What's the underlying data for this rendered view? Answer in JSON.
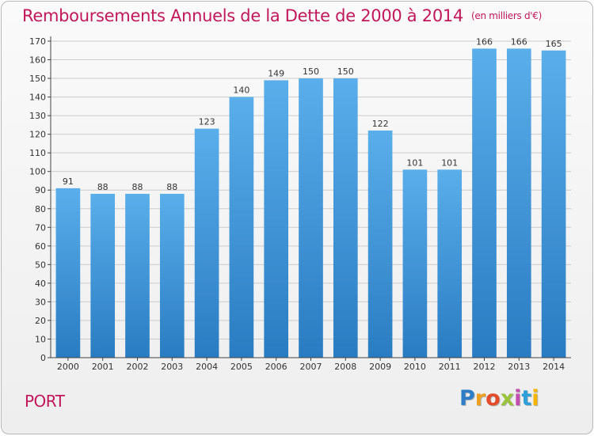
{
  "title": "Remboursements Annuels de la Dette de 2000 à 2014",
  "unit_label": "(en milliers d'€)",
  "commune": "PORT",
  "logo": {
    "letters": [
      "P",
      "r",
      "o",
      "x",
      "i",
      "t",
      "i"
    ]
  },
  "colors": {
    "title": "#c2185b",
    "bar_top": "#5aaeea",
    "bar_bottom": "#2a7cc2",
    "axis": "#444444",
    "grid": "#cccccc",
    "text": "#333333"
  },
  "chart_data": {
    "type": "bar",
    "categories": [
      "2000",
      "2001",
      "2002",
      "2003",
      "2004",
      "2005",
      "2006",
      "2007",
      "2008",
      "2009",
      "2010",
      "2011",
      "2012",
      "2013",
      "2014"
    ],
    "values": [
      91,
      88,
      88,
      88,
      123,
      140,
      149,
      150,
      150,
      122,
      101,
      101,
      166,
      166,
      165
    ],
    "ylim": [
      0,
      170
    ],
    "ytick_step": 10,
    "grid": true,
    "data_labels": true
  }
}
